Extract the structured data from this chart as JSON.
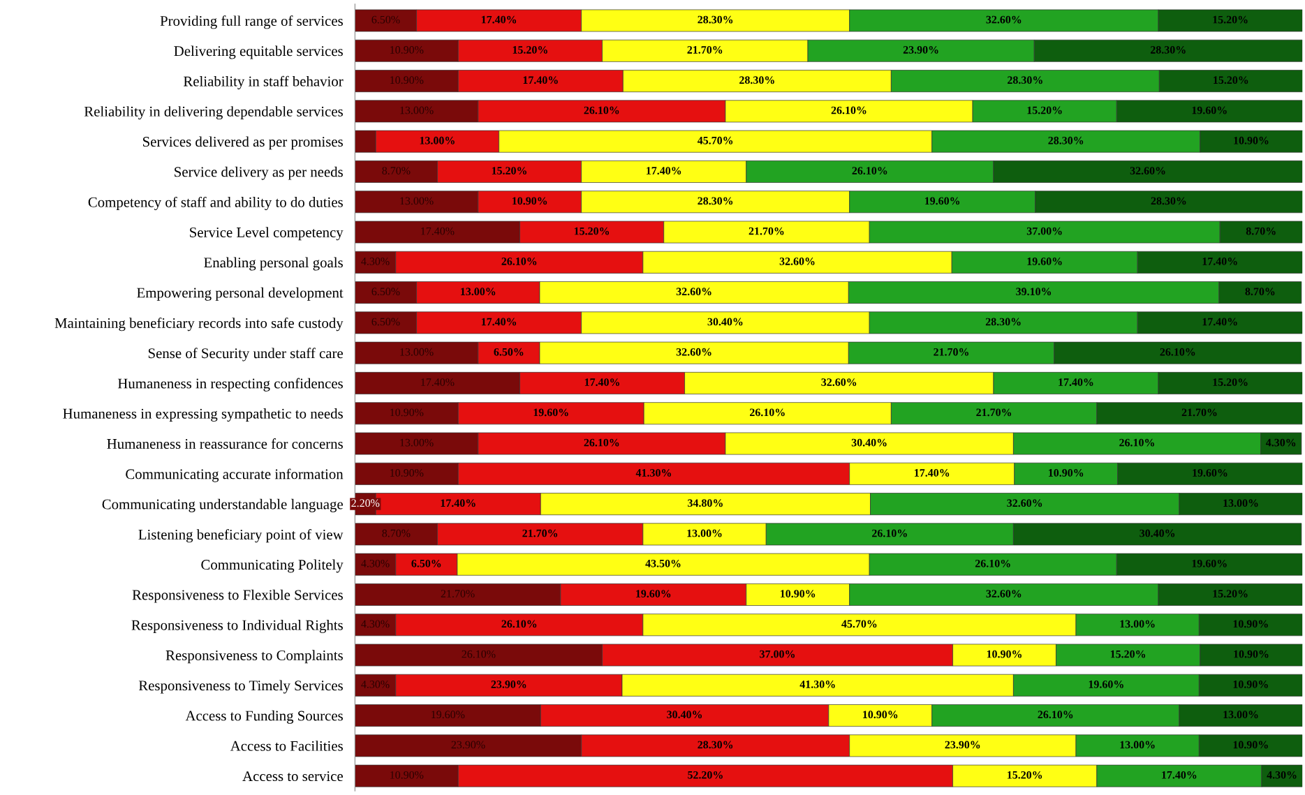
{
  "chart_data": {
    "type": "bar",
    "orientation": "horizontal",
    "stacked": true,
    "tick_labels": "y",
    "grid": false,
    "legend": false,
    "xlim": [
      0,
      100
    ],
    "categories": [
      "Providing full range of services",
      "Delivering equitable services",
      "Reliability in staff behavior",
      "Reliability in delivering dependable services",
      "Services delivered as per promises",
      "Service delivery as per needs",
      "Competency of staff and ability to do duties",
      "Service Level competency",
      "Enabling personal goals",
      "Empowering personal development",
      "Maintaining beneficiary records into safe custody",
      "Sense of Security under staff care",
      "Humaneness in respecting confidences",
      "Humaneness in expressing sympathetic to needs",
      "Humaneness in reassurance for concerns",
      "Communicating accurate information",
      "Communicating understandable language",
      "Listening beneficiary point of view",
      "Communicating Politely",
      "Responsiveness to Flexible Services",
      "Responsiveness to Individual Rights",
      "Responsiveness to Complaints",
      "Responsiveness to Timely Services",
      "Access to Funding Sources",
      "Access to Facilities",
      "Access to service"
    ],
    "series": [
      {
        "color": "#7a0a0a",
        "values": [
          6.5,
          10.9,
          10.9,
          13.0,
          2.2,
          8.7,
          13.0,
          17.4,
          4.3,
          6.5,
          6.5,
          13.0,
          17.4,
          10.9,
          13.0,
          10.9,
          2.2,
          8.7,
          4.3,
          21.7,
          4.3,
          26.1,
          4.3,
          19.6,
          23.9,
          10.9
        ],
        "value_labels": [
          "6.50%",
          "10.90%",
          "10.90%",
          "13.00%",
          null,
          "8.70%",
          "13.00%",
          "17.40%",
          "4.30%",
          "6.50%",
          "6.50%",
          "13.00%",
          "17.40%",
          "10.90%",
          "13.00%",
          "10.90%",
          "2.20%",
          "8.70%",
          "4.30%",
          "21.70%",
          "4.30%",
          "26.10%",
          "4.30%",
          "19.60%",
          "23.90%",
          "10.90%"
        ]
      },
      {
        "color": "#e51010",
        "values": [
          17.4,
          15.2,
          17.4,
          26.1,
          13.0,
          15.2,
          10.9,
          15.2,
          26.1,
          13.0,
          17.4,
          6.5,
          17.4,
          19.6,
          26.1,
          41.3,
          17.4,
          21.7,
          6.5,
          19.6,
          26.1,
          37.0,
          23.9,
          30.4,
          28.3,
          52.2
        ],
        "value_labels": [
          "17.40%",
          "15.20%",
          "17.40%",
          "26.10%",
          "13.00%",
          "15.20%",
          "10.90%",
          "15.20%",
          "26.10%",
          "13.00%",
          "17.40%",
          "6.50%",
          "17.40%",
          "19.60%",
          "26.10%",
          "41.30%",
          "17.40%",
          "21.70%",
          "6.50%",
          "19.60%",
          "26.10%",
          "37.00%",
          "23.90%",
          "30.40%",
          "28.30%",
          "52.20%"
        ]
      },
      {
        "color": "#ffff14",
        "values": [
          28.3,
          21.7,
          28.3,
          26.1,
          45.7,
          17.4,
          28.3,
          21.7,
          32.6,
          32.6,
          30.4,
          32.6,
          32.6,
          26.1,
          30.4,
          17.4,
          34.8,
          13.0,
          43.5,
          10.9,
          45.7,
          10.9,
          41.3,
          10.9,
          23.9,
          15.2
        ],
        "value_labels": [
          "28.30%",
          "21.70%",
          "28.30%",
          "26.10%",
          "45.70%",
          "17.40%",
          "28.30%",
          "21.70%",
          "32.60%",
          "32.60%",
          "30.40%",
          "32.60%",
          "32.60%",
          "26.10%",
          "30.40%",
          "17.40%",
          "34.80%",
          "13.00%",
          "43.50%",
          "10.90%",
          "45.70%",
          "10.90%",
          "41.30%",
          "10.90%",
          "23.90%",
          "15.20%"
        ]
      },
      {
        "color": "#22a322",
        "values": [
          32.6,
          23.9,
          28.3,
          15.2,
          28.3,
          26.1,
          19.6,
          37.0,
          19.6,
          39.1,
          28.3,
          21.7,
          17.4,
          21.7,
          26.1,
          10.9,
          32.6,
          26.1,
          26.1,
          32.6,
          13.0,
          15.2,
          19.6,
          26.1,
          13.0,
          17.4
        ],
        "value_labels": [
          "32.60%",
          "23.90%",
          "28.30%",
          "15.20%",
          "28.30%",
          "26.10%",
          "19.60%",
          "37.00%",
          "19.60%",
          "39.10%",
          "28.30%",
          "21.70%",
          "17.40%",
          "21.70%",
          "26.10%",
          "10.90%",
          "32.60%",
          "26.10%",
          "26.10%",
          "32.60%",
          "13.00%",
          "15.20%",
          "19.60%",
          "26.10%",
          "13.00%",
          "17.40%"
        ]
      },
      {
        "color": "#0e5e0e",
        "values": [
          15.2,
          28.3,
          15.2,
          19.6,
          10.9,
          32.6,
          28.3,
          8.7,
          17.4,
          8.7,
          17.4,
          26.1,
          15.2,
          21.7,
          4.3,
          19.6,
          13.0,
          30.4,
          19.6,
          15.2,
          10.9,
          10.9,
          10.9,
          13.0,
          10.9,
          4.3
        ],
        "value_labels": [
          "15.20%",
          "28.30%",
          "15.20%",
          "19.60%",
          "10.90%",
          "32.60%",
          "28.30%",
          "8.70%",
          "17.40%",
          "8.70%",
          "17.40%",
          "26.10%",
          "15.20%",
          "21.70%",
          "4.30%",
          "19.60%",
          "13.00%",
          "30.40%",
          "19.60%",
          "15.20%",
          "10.90%",
          "10.90%",
          "10.90%",
          "13.00%",
          "10.90%",
          "4.30%"
        ]
      }
    ]
  }
}
